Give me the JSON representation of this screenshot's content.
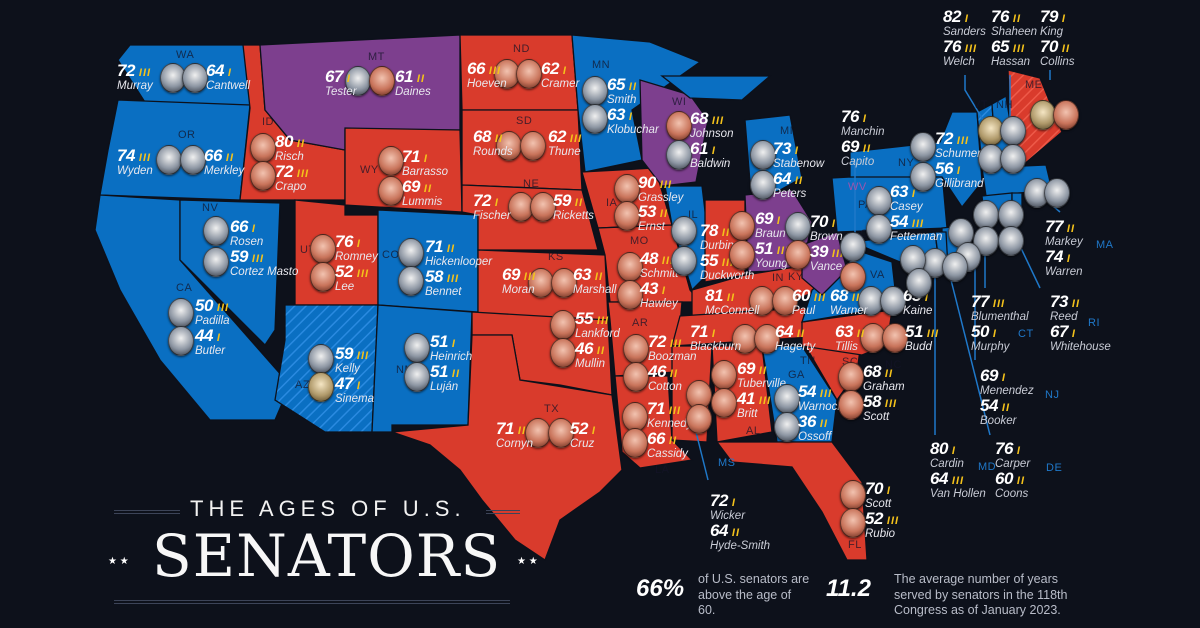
{
  "title": {
    "line1": "THE AGES OF U.S.",
    "line2": "SENATORS"
  },
  "stats": [
    {
      "value": "66%",
      "text": "of U.S. senators are above the age of 60."
    },
    {
      "value": "11.2",
      "text": "The average number of years served by senators in the 118th Congress as of January 2023."
    }
  ],
  "colors": {
    "background": "#0d111b",
    "democrat": "#0a6fc2",
    "republican": "#d93b2c",
    "split": "#7d3f8e",
    "term_marks": "#f4c21b"
  },
  "legend_note": {
    "marks": "term-tally-marks"
  },
  "states": [
    {
      "code": "WA",
      "control": "D",
      "senators": [
        {
          "name": "Murray",
          "age": 72,
          "terms": 3,
          "party": "D"
        },
        {
          "name": "Cantwell",
          "age": 64,
          "terms": 1,
          "party": "D"
        }
      ]
    },
    {
      "code": "OR",
      "control": "D",
      "senators": [
        {
          "name": "Wyden",
          "age": 74,
          "terms": 3,
          "party": "D"
        },
        {
          "name": "Merkley",
          "age": 66,
          "terms": 2,
          "party": "D"
        }
      ]
    },
    {
      "code": "CA",
      "control": "D",
      "senators": [
        {
          "name": "Padilla",
          "age": 50,
          "terms": 3,
          "party": "D"
        },
        {
          "name": "Butler",
          "age": 44,
          "terms": 1,
          "party": "D"
        }
      ]
    },
    {
      "code": "NV",
      "control": "D",
      "senators": [
        {
          "name": "Rosen",
          "age": 66,
          "terms": 1,
          "party": "D"
        },
        {
          "name": "Cortez Masto",
          "age": 59,
          "terms": 3,
          "party": "D"
        }
      ]
    },
    {
      "code": "ID",
      "control": "R",
      "senators": [
        {
          "name": "Risch",
          "age": 80,
          "terms": 2,
          "party": "R"
        },
        {
          "name": "Crapo",
          "age": 72,
          "terms": 3,
          "party": "R"
        }
      ]
    },
    {
      "code": "MT",
      "control": "split",
      "senators": [
        {
          "name": "Tester",
          "age": 67,
          "terms": 1,
          "party": "D"
        },
        {
          "name": "Daines",
          "age": 61,
          "terms": 2,
          "party": "R"
        }
      ]
    },
    {
      "code": "WY",
      "control": "R",
      "senators": [
        {
          "name": "Barrasso",
          "age": 71,
          "terms": 1,
          "party": "R"
        },
        {
          "name": "Lummis",
          "age": 69,
          "terms": 2,
          "party": "R"
        }
      ]
    },
    {
      "code": "UT",
      "control": "R",
      "senators": [
        {
          "name": "Romney",
          "age": 76,
          "terms": 1,
          "party": "R"
        },
        {
          "name": "Lee",
          "age": 52,
          "terms": 3,
          "party": "R"
        }
      ]
    },
    {
      "code": "CO",
      "control": "D",
      "senators": [
        {
          "name": "Hickenlooper",
          "age": 71,
          "terms": 2,
          "party": "D"
        },
        {
          "name": "Bennet",
          "age": 58,
          "terms": 3,
          "party": "D"
        }
      ]
    },
    {
      "code": "AZ",
      "control": "D-I",
      "senators": [
        {
          "name": "Kelly",
          "age": 59,
          "terms": 3,
          "party": "D"
        },
        {
          "name": "Sinema",
          "age": 47,
          "terms": 1,
          "party": "I"
        }
      ]
    },
    {
      "code": "NM",
      "control": "D",
      "senators": [
        {
          "name": "Heinrich",
          "age": 51,
          "terms": 1,
          "party": "D"
        },
        {
          "name": "Luján",
          "age": 51,
          "terms": 2,
          "party": "D"
        }
      ]
    },
    {
      "code": "ND",
      "control": "R",
      "senators": [
        {
          "name": "Hoeven",
          "age": 66,
          "terms": 3,
          "party": "R"
        },
        {
          "name": "Cramer",
          "age": 62,
          "terms": 1,
          "party": "R"
        }
      ]
    },
    {
      "code": "SD",
      "control": "R",
      "senators": [
        {
          "name": "Rounds",
          "age": 68,
          "terms": 2,
          "party": "R"
        },
        {
          "name": "Thune",
          "age": 62,
          "terms": 3,
          "party": "R"
        }
      ]
    },
    {
      "code": "NE",
      "control": "R",
      "senators": [
        {
          "name": "Fischer",
          "age": 72,
          "terms": 1,
          "party": "R"
        },
        {
          "name": "Ricketts",
          "age": 59,
          "terms": 2,
          "party": "R"
        }
      ]
    },
    {
      "code": "KS",
      "control": "R",
      "senators": [
        {
          "name": "Moran",
          "age": 69,
          "terms": 3,
          "party": "R"
        },
        {
          "name": "Marshall",
          "age": 63,
          "terms": 2,
          "party": "R"
        }
      ]
    },
    {
      "code": "OK",
      "control": "R",
      "senators": [
        {
          "name": "Lankford",
          "age": 55,
          "terms": 3,
          "party": "R"
        },
        {
          "name": "Mullin",
          "age": 46,
          "terms": 2,
          "party": "R"
        }
      ]
    },
    {
      "code": "TX",
      "control": "R",
      "senators": [
        {
          "name": "Cornyn",
          "age": 71,
          "terms": 2,
          "party": "R"
        },
        {
          "name": "Cruz",
          "age": 52,
          "terms": 1,
          "party": "R"
        }
      ]
    },
    {
      "code": "MN",
      "control": "D",
      "senators": [
        {
          "name": "Smith",
          "age": 65,
          "terms": 2,
          "party": "D"
        },
        {
          "name": "Klobuchar",
          "age": 63,
          "terms": 1,
          "party": "D"
        }
      ]
    },
    {
      "code": "IA",
      "control": "R",
      "senators": [
        {
          "name": "Grassley",
          "age": 90,
          "terms": 3,
          "party": "R"
        },
        {
          "name": "Ernst",
          "age": 53,
          "terms": 2,
          "party": "R"
        }
      ]
    },
    {
      "code": "MO",
      "control": "R",
      "senators": [
        {
          "name": "Schmitt",
          "age": 48,
          "terms": 3,
          "party": "R"
        },
        {
          "name": "Hawley",
          "age": 43,
          "terms": 1,
          "party": "R"
        }
      ]
    },
    {
      "code": "AR",
      "control": "R",
      "senators": [
        {
          "name": "Boozman",
          "age": 72,
          "terms": 3,
          "party": "R"
        },
        {
          "name": "Cotton",
          "age": 46,
          "terms": 2,
          "party": "R"
        }
      ]
    },
    {
      "code": "LA",
      "control": "R",
      "senators": [
        {
          "name": "Kennedy",
          "age": 71,
          "terms": 3,
          "party": "R"
        },
        {
          "name": "Cassidy",
          "age": 66,
          "terms": 2,
          "party": "R"
        }
      ]
    },
    {
      "code": "WI",
      "control": "split",
      "senators": [
        {
          "name": "Johnson",
          "age": 68,
          "terms": 3,
          "party": "R"
        },
        {
          "name": "Baldwin",
          "age": 61,
          "terms": 1,
          "party": "D"
        }
      ]
    },
    {
      "code": "IL",
      "control": "D",
      "senators": [
        {
          "name": "Durbin",
          "age": 78,
          "terms": 2,
          "party": "D"
        },
        {
          "name": "Duckworth",
          "age": 55,
          "terms": 3,
          "party": "D"
        }
      ]
    },
    {
      "code": "MI",
      "control": "D",
      "senators": [
        {
          "name": "Stabenow",
          "age": 73,
          "terms": 1,
          "party": "D"
        },
        {
          "name": "Peters",
          "age": 64,
          "terms": 2,
          "party": "D"
        }
      ]
    },
    {
      "code": "IN",
      "control": "R",
      "senators": [
        {
          "name": "Braun",
          "age": 69,
          "terms": 1,
          "party": "R"
        },
        {
          "name": "Young",
          "age": 51,
          "terms": 3,
          "party": "R"
        }
      ]
    },
    {
      "code": "OH",
      "control": "split",
      "senators": [
        {
          "name": "Brown",
          "age": 70,
          "terms": 1,
          "party": "D"
        },
        {
          "name": "Vance",
          "age": 39,
          "terms": 3,
          "party": "R"
        }
      ]
    },
    {
      "code": "KY",
      "control": "R",
      "senators": [
        {
          "name": "McConnell",
          "age": 81,
          "terms": 2,
          "party": "R"
        },
        {
          "name": "Paul",
          "age": 60,
          "terms": 3,
          "party": "R"
        }
      ]
    },
    {
      "code": "TN",
      "control": "R",
      "senators": [
        {
          "name": "Blackburn",
          "age": 71,
          "terms": 1,
          "party": "R"
        },
        {
          "name": "Hagerty",
          "age": 64,
          "terms": 2,
          "party": "R"
        }
      ]
    },
    {
      "code": "MS",
      "control": "R",
      "senators": [
        {
          "name": "Wicker",
          "age": 72,
          "terms": 1,
          "party": "R"
        },
        {
          "name": "Hyde-Smith",
          "age": 64,
          "terms": 2,
          "party": "R"
        }
      ]
    },
    {
      "code": "AL",
      "control": "R",
      "senators": [
        {
          "name": "Tuberville",
          "age": 69,
          "terms": 2,
          "party": "R"
        },
        {
          "name": "Britt",
          "age": 41,
          "terms": 3,
          "party": "R"
        }
      ]
    },
    {
      "code": "GA",
      "control": "D",
      "senators": [
        {
          "name": "Warnock",
          "age": 54,
          "terms": 3,
          "party": "D"
        },
        {
          "name": "Ossoff",
          "age": 36,
          "terms": 2,
          "party": "D"
        }
      ]
    },
    {
      "code": "FL",
      "control": "R",
      "senators": [
        {
          "name": "Scott",
          "age": 70,
          "terms": 1,
          "party": "R"
        },
        {
          "name": "Rubio",
          "age": 52,
          "terms": 3,
          "party": "R"
        }
      ]
    },
    {
      "code": "SC",
      "control": "R",
      "senators": [
        {
          "name": "Graham",
          "age": 68,
          "terms": 2,
          "party": "R"
        },
        {
          "name": "Scott",
          "age": 58,
          "terms": 3,
          "party": "R"
        }
      ]
    },
    {
      "code": "NC",
      "control": "R",
      "senators": [
        {
          "name": "Tillis",
          "age": 63,
          "terms": 2,
          "party": "R"
        },
        {
          "name": "Budd",
          "age": 51,
          "terms": 3,
          "party": "R"
        }
      ]
    },
    {
      "code": "VA",
      "control": "D",
      "senators": [
        {
          "name": "Warner",
          "age": 68,
          "terms": 2,
          "party": "D"
        },
        {
          "name": "Kaine",
          "age": 65,
          "terms": 1,
          "party": "D"
        }
      ]
    },
    {
      "code": "WV",
      "control": "split",
      "senators": [
        {
          "name": "Manchin",
          "age": 76,
          "terms": 1,
          "party": "D"
        },
        {
          "name": "Capito",
          "age": 69,
          "terms": 2,
          "party": "R"
        }
      ]
    },
    {
      "code": "PA",
      "control": "D",
      "senators": [
        {
          "name": "Casey",
          "age": 63,
          "terms": 1,
          "party": "D"
        },
        {
          "name": "Fetterman",
          "age": 54,
          "terms": 3,
          "party": "D"
        }
      ]
    },
    {
      "code": "NY",
      "control": "D",
      "senators": [
        {
          "name": "Schumer",
          "age": 72,
          "terms": 3,
          "party": "D"
        },
        {
          "name": "Gillibrand",
          "age": 56,
          "terms": 1,
          "party": "D"
        }
      ]
    },
    {
      "code": "VT",
      "control": "D-I",
      "senators": [
        {
          "name": "Sanders",
          "age": 82,
          "terms": 1,
          "party": "I"
        },
        {
          "name": "Welch",
          "age": 76,
          "terms": 3,
          "party": "D"
        }
      ]
    },
    {
      "code": "NH",
      "control": "D",
      "senators": [
        {
          "name": "Shaheen",
          "age": 76,
          "terms": 2,
          "party": "D"
        },
        {
          "name": "Hassan",
          "age": 65,
          "terms": 3,
          "party": "D"
        }
      ]
    },
    {
      "code": "ME",
      "control": "I-R",
      "senators": [
        {
          "name": "King",
          "age": 79,
          "terms": 1,
          "party": "I"
        },
        {
          "name": "Collins",
          "age": 70,
          "terms": 2,
          "party": "R"
        }
      ]
    },
    {
      "code": "MA",
      "control": "D",
      "senators": [
        {
          "name": "Markey",
          "age": 77,
          "terms": 2,
          "party": "D"
        },
        {
          "name": "Warren",
          "age": 74,
          "terms": 1,
          "party": "D"
        }
      ]
    },
    {
      "code": "CT",
      "control": "D",
      "senators": [
        {
          "name": "Blumenthal",
          "age": 77,
          "terms": 3,
          "party": "D"
        },
        {
          "name": "Murphy",
          "age": 50,
          "terms": 1,
          "party": "D"
        }
      ]
    },
    {
      "code": "RI",
      "control": "D",
      "senators": [
        {
          "name": "Reed",
          "age": 73,
          "terms": 2,
          "party": "D"
        },
        {
          "name": "Whitehouse",
          "age": 67,
          "terms": 1,
          "party": "D"
        }
      ]
    },
    {
      "code": "NJ",
      "control": "D",
      "senators": [
        {
          "name": "Menendez",
          "age": 69,
          "terms": 1,
          "party": "D"
        },
        {
          "name": "Booker",
          "age": 54,
          "terms": 2,
          "party": "D"
        }
      ]
    },
    {
      "code": "MD",
      "control": "D",
      "senators": [
        {
          "name": "Cardin",
          "age": 80,
          "terms": 1,
          "party": "D"
        },
        {
          "name": "Van Hollen",
          "age": 64,
          "terms": 3,
          "party": "D"
        }
      ]
    },
    {
      "code": "DE",
      "control": "D",
      "senators": [
        {
          "name": "Carper",
          "age": 76,
          "terms": 1,
          "party": "D"
        },
        {
          "name": "Coons",
          "age": 60,
          "terms": 2,
          "party": "D"
        }
      ]
    }
  ]
}
